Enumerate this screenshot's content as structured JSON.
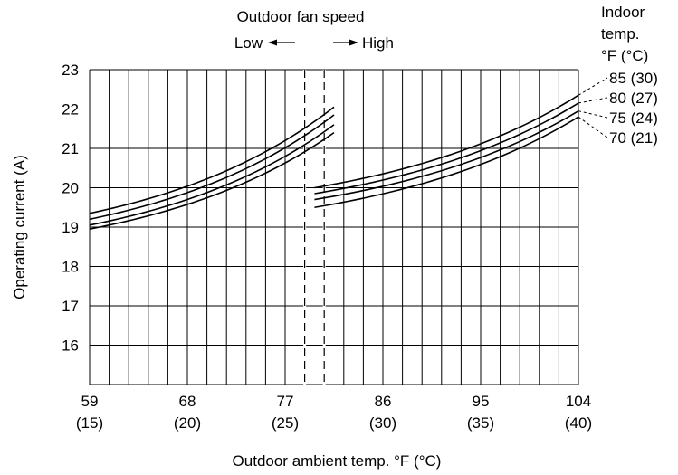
{
  "chart_data": {
    "type": "line",
    "xlabel": "Outdoor ambient temp. °F (°C)",
    "ylabel": "Operating current (A)",
    "x_ticks": [
      {
        "f": "59",
        "c": "(15)"
      },
      {
        "f": "68",
        "c": "(20)"
      },
      {
        "f": "77",
        "c": "(25)"
      },
      {
        "f": "86",
        "c": "(30)"
      },
      {
        "f": "95",
        "c": "(35)"
      },
      {
        "f": "104",
        "c": "(40)"
      }
    ],
    "y_ticks": [
      "16",
      "17",
      "18",
      "19",
      "20",
      "21",
      "22",
      "23"
    ],
    "xlim": [
      59,
      104
    ],
    "ylim": [
      15,
      23
    ],
    "fan_speed": {
      "title": "Outdoor fan speed",
      "low": "Low",
      "high": "High"
    },
    "legend": {
      "title_lines": [
        "Indoor",
        "temp.",
        "°F (°C)"
      ]
    },
    "switch_lines_x": [
      78.8,
      80.6
    ],
    "series": [
      {
        "name": "85 (30)",
        "low_range": {
          "x": [
            59,
            81.5
          ],
          "y": [
            19.35,
            22.05
          ]
        },
        "high_range": {
          "x": [
            79.7,
            104
          ],
          "y": [
            20.0,
            22.35
          ]
        }
      },
      {
        "name": "80 (27)",
        "low_range": {
          "x": [
            59,
            81.5
          ],
          "y": [
            19.2,
            21.85
          ]
        },
        "high_range": {
          "x": [
            79.7,
            104
          ],
          "y": [
            19.85,
            22.15
          ]
        }
      },
      {
        "name": "75 (24)",
        "low_range": {
          "x": [
            59,
            81.5
          ],
          "y": [
            19.05,
            21.6
          ]
        },
        "high_range": {
          "x": [
            79.7,
            104
          ],
          "y": [
            19.7,
            21.95
          ]
        }
      },
      {
        "name": "70 (21)",
        "low_range": {
          "x": [
            59,
            81.5
          ],
          "y": [
            18.95,
            21.4
          ]
        },
        "high_range": {
          "x": [
            79.7,
            104
          ],
          "y": [
            19.5,
            21.8
          ]
        }
      }
    ]
  }
}
